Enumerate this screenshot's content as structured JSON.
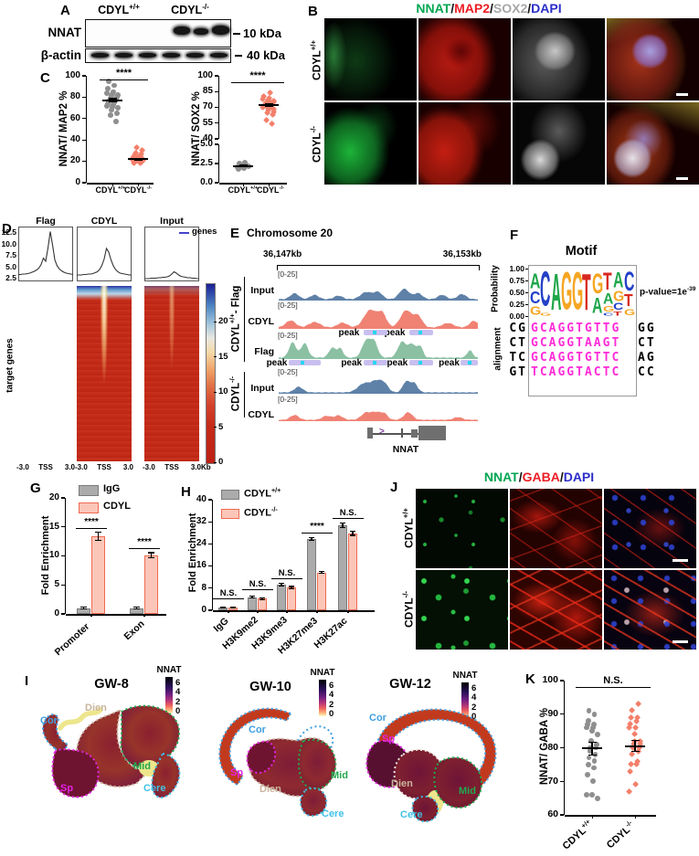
{
  "panelA": {
    "label": "A",
    "col_headers": [
      {
        "base": "CDYL",
        "sup": "+/+"
      },
      {
        "base": "CDYL",
        "sup": "-/-"
      }
    ],
    "blots": [
      {
        "name": "NNAT",
        "marker": "10 kDa"
      },
      {
        "name": "β-actin",
        "marker": "40 kDa"
      }
    ]
  },
  "panelB": {
    "label": "B",
    "title_parts": [
      {
        "text": "NNAT",
        "color": "#00A651"
      },
      {
        "text": "/",
        "color": "#111111"
      },
      {
        "text": "MAP2",
        "color": "#EC1C24"
      },
      {
        "text": "/",
        "color": "#111111"
      },
      {
        "text": "SOX2",
        "color": "#A7A7A7"
      },
      {
        "text": "/",
        "color": "#111111"
      },
      {
        "text": "DAPI",
        "color": "#2B2EC8"
      }
    ],
    "rows": [
      {
        "base": "CDYL",
        "sup": "+/+"
      },
      {
        "base": "CDYL",
        "sup": "-/-"
      }
    ]
  },
  "panelC": {
    "label": "C",
    "xgroups": [
      {
        "base": "CDYL",
        "sup": "+/+"
      },
      {
        "base": "CDYL",
        "sup": "-/-"
      }
    ]
  },
  "panelD": {
    "label": "D",
    "columns": [
      "Flag",
      "CDYL",
      "Input"
    ],
    "legend": "genes",
    "ylabel_heatmap": "target genes",
    "colorbar_ticks": [
      20,
      15,
      10,
      5,
      0
    ]
  },
  "panelE": {
    "label": "E",
    "title": "Chromosome 20",
    "coords": {
      "left": "36,147kb",
      "right": "36,153kb"
    },
    "scale_label": "[0-25]",
    "group_wt": {
      "base": "CDYL",
      "sup": "+/+",
      "suffix": "- Flag"
    },
    "group_ko": {
      "base": "CDYL",
      "sup": "-/-"
    },
    "peak_label": "peak",
    "gene_label": "NNAT",
    "tracks": [
      {
        "name": "Input",
        "color": "#5E81A8",
        "bumps": [
          [
            0.08,
            0.3,
            0.03
          ],
          [
            0.18,
            0.22,
            0.03
          ],
          [
            0.3,
            0.18,
            0.03
          ],
          [
            0.44,
            0.36,
            0.04
          ],
          [
            0.5,
            0.34,
            0.03
          ],
          [
            0.63,
            0.52,
            0.035
          ],
          [
            0.7,
            0.3,
            0.03
          ],
          [
            0.82,
            0.22,
            0.03
          ],
          [
            0.92,
            0.26,
            0.03
          ]
        ]
      },
      {
        "name": "CDYL",
        "color": "#F08274",
        "bumps": [
          [
            0.06,
            0.32,
            0.035
          ],
          [
            0.18,
            0.25,
            0.04
          ],
          [
            0.32,
            0.22,
            0.035
          ],
          [
            0.46,
            0.8,
            0.045
          ],
          [
            0.52,
            0.6,
            0.03
          ],
          [
            0.64,
            0.78,
            0.04
          ],
          [
            0.7,
            0.5,
            0.03
          ],
          [
            0.85,
            0.2,
            0.04
          ],
          [
            0.98,
            0.3,
            0.03
          ]
        ]
      },
      {
        "name": "Flag",
        "color": "#8BC0A3",
        "bumps": [
          [
            0.07,
            0.7,
            0.025
          ],
          [
            0.13,
            0.66,
            0.025
          ],
          [
            0.27,
            0.45,
            0.025
          ],
          [
            0.31,
            0.4,
            0.02
          ],
          [
            0.44,
            0.78,
            0.03
          ],
          [
            0.48,
            0.68,
            0.025
          ],
          [
            0.62,
            0.73,
            0.03
          ],
          [
            0.67,
            0.6,
            0.025
          ],
          [
            0.71,
            0.52,
            0.02
          ],
          [
            0.96,
            0.33,
            0.02
          ]
        ]
      },
      {
        "name": "Input",
        "color": "#5E81A8",
        "bumps": [
          [
            0.1,
            0.28,
            0.03
          ],
          [
            0.43,
            0.45,
            0.045
          ],
          [
            0.49,
            0.48,
            0.035
          ],
          [
            0.53,
            0.4,
            0.03
          ],
          [
            0.64,
            0.53,
            0.025
          ],
          [
            0.68,
            0.46,
            0.025
          ]
        ]
      },
      {
        "name": "CDYL",
        "color": "#F08274",
        "bumps": [
          [
            0.08,
            0.24,
            0.03
          ],
          [
            0.24,
            0.2,
            0.03
          ],
          [
            0.3,
            0.22,
            0.03
          ],
          [
            0.44,
            0.36,
            0.035
          ],
          [
            0.49,
            0.34,
            0.03
          ],
          [
            0.53,
            0.3,
            0.025
          ],
          [
            0.65,
            0.38,
            0.03
          ],
          [
            0.9,
            0.14,
            0.03
          ]
        ]
      }
    ]
  },
  "panelF": {
    "label": "F",
    "title": "Motif",
    "prob_label": "Probability",
    "prob_ticks": [
      "1.00",
      "0.75",
      "0.50",
      "0.25",
      "0.00"
    ],
    "pvalue_base": "p-value=1e",
    "pvalue_sup": "-39",
    "align_label": "alignment",
    "core_color": "#FF2BD8",
    "logo": [
      [
        [
          "A",
          0.38,
          "#1FA64A"
        ],
        [
          "C",
          0.3,
          "#2440C8"
        ],
        [
          "G",
          0.22,
          "#F5A623"
        ]
      ],
      [
        [
          "C",
          0.9,
          "#2440C8"
        ],
        [
          "G",
          0.08,
          "#F5A623"
        ]
      ],
      [
        [
          "A",
          0.95,
          "#1FA64A"
        ]
      ],
      [
        [
          "G",
          0.97,
          "#F5A623"
        ]
      ],
      [
        [
          "G",
          0.97,
          "#F5A623"
        ]
      ],
      [
        [
          "T",
          0.95,
          "#D8281E"
        ]
      ],
      [
        [
          "G",
          0.52,
          "#F5A623"
        ],
        [
          "A",
          0.4,
          "#1FA64A"
        ]
      ],
      [
        [
          "T",
          0.45,
          "#D8281E"
        ],
        [
          "A",
          0.28,
          "#1FA64A"
        ],
        [
          "G",
          0.14,
          "#F5A623"
        ],
        [
          "C",
          0.08,
          "#2440C8"
        ]
      ],
      [
        [
          "A",
          0.4,
          "#1FA64A"
        ],
        [
          "G",
          0.26,
          "#F5A623"
        ],
        [
          "C",
          0.18,
          "#2440C8"
        ],
        [
          "T",
          0.1,
          "#D8281E"
        ]
      ],
      [
        [
          "C",
          0.5,
          "#2440C8"
        ],
        [
          "T",
          0.3,
          "#D8281E"
        ],
        [
          "G",
          0.16,
          "#F5A623"
        ]
      ]
    ],
    "alignment": [
      {
        "left": "CG",
        "core": "GCAGGTGTTG",
        "right": "GG"
      },
      {
        "left": "CT",
        "core": "GCAGGTAAGT",
        "right": "CT"
      },
      {
        "left": "TC",
        "core": "GCAGGTGTTC",
        "right": "AG"
      },
      {
        "left": "GT",
        "core": "TCAGGTACTC",
        "right": "CC"
      }
    ]
  },
  "panelG": {
    "label": "G",
    "legend": [
      {
        "label": "IgG"
      },
      {
        "label": "CDYL"
      }
    ]
  },
  "panelH": {
    "label": "H",
    "legend": [
      {
        "base": "CDYL",
        "sup": "+/+"
      },
      {
        "base": "CDYL",
        "sup": "-/-"
      }
    ]
  },
  "panelI": {
    "label": "I",
    "maps": [
      {
        "title": "GW-8"
      },
      {
        "title": "GW-10"
      },
      {
        "title": "GW-12"
      }
    ],
    "colorbar": {
      "label": "NNAT",
      "ticks": [
        6,
        4,
        2,
        0
      ]
    },
    "regions": [
      {
        "name": "Cor",
        "color": "#3F9FE0"
      },
      {
        "name": "Dien",
        "color": "#C9B59C"
      },
      {
        "name": "Sp",
        "color": "#E423E4"
      },
      {
        "name": "Mid",
        "color": "#21A94F"
      },
      {
        "name": "Cere",
        "color": "#3FC1E6"
      }
    ]
  },
  "panelJ": {
    "label": "J",
    "title_parts": [
      {
        "text": "NNAT",
        "color": "#00A651"
      },
      {
        "text": "/",
        "color": "#111111"
      },
      {
        "text": "GABA",
        "color": "#EC1C24"
      },
      {
        "text": "/",
        "color": "#111111"
      },
      {
        "text": "DAPI",
        "color": "#2B2EC8"
      }
    ],
    "rows": [
      {
        "base": "CDYL",
        "sup": "+/+"
      },
      {
        "base": "CDYL",
        "sup": "-/-"
      }
    ]
  },
  "panelK": {
    "label": "K",
    "xgroups": [
      {
        "base": "CDYL",
        "sup": "+/+"
      },
      {
        "base": "CDYL",
        "sup": "-/-"
      }
    ]
  },
  "chart_data": [
    {
      "id": "C1",
      "type": "scatter",
      "ylabel": "NNAT/ MAP2 %",
      "ylim": [
        0,
        100
      ],
      "yticks": [
        0,
        20,
        40,
        60,
        80,
        100
      ],
      "sig": "****",
      "groups": [
        {
          "name": "CDYL+/+",
          "color": "#8F8F8F",
          "marker": "circle",
          "mean": 77,
          "sem": 1.7,
          "values": [
            95,
            91,
            88,
            85,
            84,
            83,
            82,
            81,
            80,
            79,
            78,
            78,
            77,
            77,
            76,
            76,
            75,
            74,
            73,
            72,
            71,
            70,
            68,
            65,
            63,
            57
          ]
        },
        {
          "name": "CDYL-/-",
          "color": "#F3806B",
          "marker": "diamond",
          "mean": 22,
          "sem": 0.8,
          "values": [
            33,
            30,
            28,
            27,
            26,
            25,
            24,
            24,
            23,
            23,
            22,
            22,
            22,
            21,
            21,
            21,
            20,
            20,
            19,
            19,
            18,
            18
          ]
        }
      ]
    },
    {
      "id": "C2",
      "type": "scatter",
      "ylabel": "NNAT/ SOX2 %",
      "sig": "****",
      "broken_axis": true,
      "top_ylim": [
        40,
        100
      ],
      "top_yticks": [
        100,
        85,
        70,
        55,
        40
      ],
      "bottom_ylim": [
        0,
        5
      ],
      "bottom_yticks": [
        "5.0",
        "2.5",
        "0.0"
      ],
      "groups": [
        {
          "name": "CDYL+/+",
          "color": "#8F8F8F",
          "marker": "circle",
          "segment": "bottom",
          "mean": 2.2,
          "sem": 0.1,
          "values": [
            1.8,
            1.9,
            2.0,
            2.0,
            2.1,
            2.1,
            2.2,
            2.2,
            2.2,
            2.3,
            2.3,
            2.4,
            2.4,
            2.5,
            2.6
          ]
        },
        {
          "name": "CDYL-/-",
          "color": "#F3806B",
          "marker": "diamond",
          "segment": "top",
          "mean": 72,
          "sem": 1.4,
          "values": [
            84,
            80,
            79,
            78,
            77,
            76,
            76,
            75,
            75,
            74,
            74,
            73,
            73,
            72,
            72,
            71,
            71,
            70,
            70,
            69,
            68,
            67,
            66,
            65,
            63,
            58,
            54
          ]
        }
      ]
    },
    {
      "id": "D_profiles",
      "type": "line",
      "yticks": [
        "12.5",
        "10.0",
        "7.5",
        "5.0",
        "2.5"
      ],
      "xticks": [
        "-3.0",
        "TSS",
        "3.0"
      ],
      "x_unit": "Kb",
      "legend": "genes",
      "series": [
        {
          "name": "Flag",
          "values": [
            3.0,
            3.0,
            3.1,
            3.1,
            3.2,
            3.3,
            3.5,
            3.7,
            4.0,
            4.4,
            5.2,
            6.6,
            5.9,
            8.8,
            12.4,
            9.5,
            6.2,
            4.9,
            4.2,
            3.8,
            3.5,
            3.3,
            3.2,
            3.1,
            3.0
          ]
        },
        {
          "name": "CDYL",
          "values": [
            2.9,
            2.9,
            2.9,
            3.0,
            3.0,
            3.1,
            3.1,
            3.2,
            3.4,
            3.6,
            4.1,
            5.0,
            6.4,
            8.7,
            7.9,
            6.2,
            4.9,
            4.1,
            3.6,
            3.3,
            3.2,
            3.1,
            3.0,
            2.9,
            2.9
          ]
        },
        {
          "name": "Input",
          "values": [
            2.1,
            2.1,
            2.1,
            2.2,
            2.2,
            2.2,
            2.3,
            2.3,
            2.4,
            2.4,
            2.5,
            2.7,
            3.1,
            3.6,
            3.3,
            2.9,
            2.6,
            2.5,
            2.4,
            2.3,
            2.3,
            2.2,
            2.2,
            2.1,
            2.1
          ]
        }
      ]
    },
    {
      "id": "G",
      "type": "bar",
      "ylabel": "Fold Enrichment",
      "ylim": [
        0,
        20
      ],
      "yticks": [
        0,
        5,
        10,
        15,
        20
      ],
      "categories": [
        "Promoter",
        "Exon"
      ],
      "series": [
        {
          "name": "IgG",
          "fill": "#ABABAB",
          "stroke": "#7A7A7A",
          "values": [
            1.0,
            1.0
          ],
          "err": [
            0.15,
            0.12
          ]
        },
        {
          "name": "CDYL",
          "fill": "#FBC6B8",
          "stroke": "#EF6B51",
          "values": [
            13.4,
            10.1
          ],
          "err": [
            0.7,
            0.45
          ]
        }
      ],
      "sigs": [
        "****",
        "****"
      ]
    },
    {
      "id": "H",
      "type": "bar",
      "ylabel": "Fold Enrichment",
      "ylim": [
        0,
        40
      ],
      "yticks": [
        0,
        8,
        16,
        24,
        32,
        40
      ],
      "categories": [
        "IgG",
        "H3K9me2",
        "H3K9me3",
        "H3K27me3",
        "H3K27ac"
      ],
      "series": [
        {
          "name": "CDYL+/+",
          "fill": "#ABABAB",
          "stroke": "#7A7A7A",
          "values": [
            1.0,
            4.7,
            9.3,
            25.8,
            30.8
          ],
          "err": [
            0.12,
            0.35,
            0.5,
            0.55,
            0.8
          ]
        },
        {
          "name": "CDYL-/-",
          "fill": "#FBC6B8",
          "stroke": "#EF6B51",
          "values": [
            1.0,
            4.2,
            8.2,
            13.7,
            27.8
          ],
          "err": [
            0.12,
            0.3,
            0.4,
            0.4,
            0.7
          ]
        }
      ],
      "sigs": [
        "N.S.",
        "N.S.",
        "N.S.",
        "****",
        "N.S."
      ]
    },
    {
      "id": "K",
      "type": "scatter",
      "ylabel": "NNAT/ GABA %",
      "ylim": [
        60,
        100
      ],
      "yticks": [
        100,
        90,
        80,
        70,
        60
      ],
      "sig": "N.S.",
      "groups": [
        {
          "name": "CDYL+/+",
          "color": "#8F8F8F",
          "marker": "circle",
          "mean": 79.8,
          "sem": 1.9,
          "values": [
            91,
            90,
            88,
            87,
            87,
            86,
            86,
            85,
            84,
            82,
            81,
            80,
            80,
            79,
            78,
            77,
            76,
            75,
            74,
            72,
            70,
            66,
            66,
            65
          ]
        },
        {
          "name": "CDYL-/-",
          "color": "#F3806B",
          "marker": "diamond",
          "mean": 80.5,
          "sem": 1.6,
          "values": [
            93,
            91,
            89,
            89,
            88,
            87,
            86,
            86,
            84,
            82,
            82,
            81,
            81,
            80,
            80,
            79,
            78,
            76,
            75,
            75,
            73,
            69,
            67
          ]
        }
      ]
    }
  ]
}
